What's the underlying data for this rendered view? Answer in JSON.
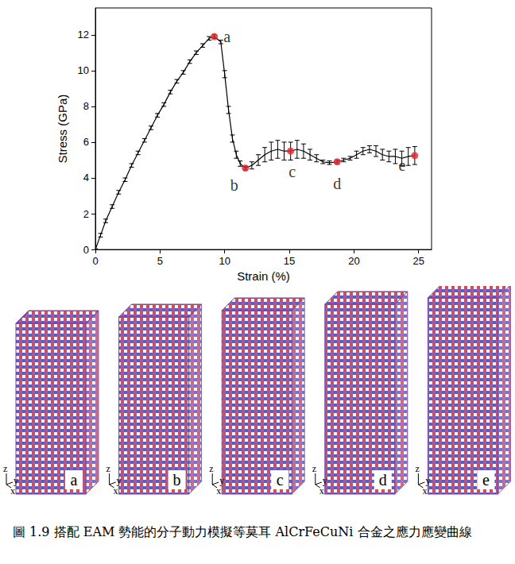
{
  "chart_data": {
    "type": "line",
    "x_label": "Strain (%)",
    "y_label": "Stress (GPa)",
    "color": "#000000",
    "x": [
      0,
      0.4,
      0.8,
      1.3,
      1.8,
      2.3,
      2.8,
      3.3,
      3.8,
      4.3,
      4.8,
      5.3,
      5.8,
      6.3,
      6.8,
      7.3,
      7.8,
      8.3,
      8.8,
      9.2,
      9.7,
      10.0,
      10.3,
      10.6,
      10.9,
      11.2,
      11.6,
      12.1,
      12.6,
      13.1,
      13.6,
      14.1,
      14.6,
      15.1,
      15.6,
      16.1,
      16.6,
      17.1,
      17.6,
      18.1,
      18.7,
      19.2,
      19.7,
      20.2,
      20.7,
      21.2,
      21.7,
      22.2,
      22.7,
      23.2,
      23.7,
      24.2,
      24.7
    ],
    "values": [
      0,
      0.8,
      1.6,
      2.4,
      3.2,
      3.9,
      4.7,
      5.4,
      6.1,
      6.8,
      7.5,
      8.1,
      8.8,
      9.4,
      9.9,
      10.5,
      11.0,
      11.4,
      11.8,
      11.9,
      11.6,
      9.8,
      7.8,
      6.2,
      5.3,
      4.8,
      4.55,
      4.7,
      5.0,
      5.3,
      5.5,
      5.6,
      5.5,
      5.5,
      5.6,
      5.5,
      5.3,
      5.1,
      4.9,
      4.85,
      4.9,
      5.0,
      5.1,
      5.3,
      5.5,
      5.6,
      5.5,
      5.3,
      5.2,
      5.2,
      5.1,
      5.2,
      5.25
    ],
    "errors": [
      0.05,
      0.1,
      0.1,
      0.1,
      0.1,
      0.1,
      0.1,
      0.1,
      0.1,
      0.1,
      0.1,
      0.1,
      0.1,
      0.1,
      0.1,
      0.1,
      0.1,
      0.1,
      0.1,
      0.1,
      0.1,
      0.2,
      0.2,
      0.2,
      0.2,
      0.15,
      0.1,
      0.2,
      0.3,
      0.4,
      0.5,
      0.5,
      0.5,
      0.5,
      0.5,
      0.4,
      0.3,
      0.2,
      0.1,
      0.1,
      0.1,
      0.1,
      0.1,
      0.2,
      0.2,
      0.2,
      0.3,
      0.3,
      0.3,
      0.4,
      0.4,
      0.5,
      0.5
    ],
    "xlim": [
      0,
      26
    ],
    "xticks": [
      0,
      5,
      10,
      15,
      20,
      25
    ],
    "ylim": [
      0,
      13.5
    ],
    "yticks": [
      0,
      2,
      4,
      6,
      8,
      10,
      12
    ],
    "grid": false,
    "points": {
      "labels": [
        "a",
        "b",
        "c",
        "d",
        "e"
      ],
      "x": [
        9.2,
        11.6,
        15.1,
        18.7,
        24.7
      ],
      "y": [
        11.9,
        4.55,
        5.5,
        4.9,
        5.25
      ],
      "color": "#e8262a"
    }
  },
  "snapshots": [
    {
      "label": "a",
      "axes": [
        "z",
        "y",
        "x"
      ]
    },
    {
      "label": "b",
      "axes": [
        "z",
        "y",
        "x"
      ]
    },
    {
      "label": "c",
      "axes": [
        "z",
        "y",
        "x"
      ]
    },
    {
      "label": "d",
      "axes": [
        "z",
        "y",
        "x"
      ]
    },
    {
      "label": "e",
      "axes": [
        "z",
        "y",
        "x"
      ]
    }
  ],
  "caption": "圖 1.9 搭配 EAM 勢能的分子動力模擬等莫耳 AlCrFeCuNi 合金之應力應變曲線"
}
